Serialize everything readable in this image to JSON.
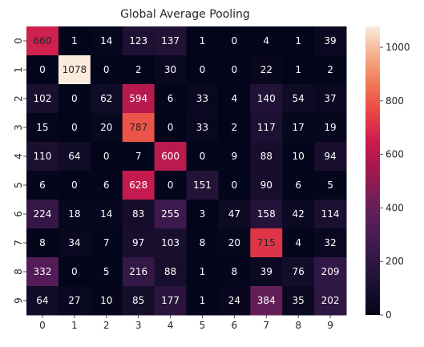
{
  "chart_data": {
    "type": "heatmap",
    "title": "Global Average Pooling",
    "xlabel": "",
    "ylabel": "",
    "x_ticks": [
      "0",
      "1",
      "2",
      "3",
      "4",
      "5",
      "6",
      "7",
      "8",
      "9"
    ],
    "y_ticks": [
      "0",
      "1",
      "2",
      "3",
      "4",
      "5",
      "6",
      "7",
      "8",
      "9"
    ],
    "values": [
      [
        660,
        1,
        14,
        123,
        137,
        1,
        0,
        4,
        1,
        39
      ],
      [
        0,
        1078,
        0,
        2,
        30,
        0,
        0,
        22,
        1,
        2
      ],
      [
        102,
        0,
        62,
        594,
        6,
        33,
        4,
        140,
        54,
        37
      ],
      [
        15,
        0,
        20,
        787,
        0,
        33,
        2,
        117,
        17,
        19
      ],
      [
        110,
        64,
        0,
        7,
        600,
        0,
        9,
        88,
        10,
        94
      ],
      [
        6,
        0,
        6,
        628,
        0,
        151,
        0,
        90,
        6,
        5
      ],
      [
        224,
        18,
        14,
        83,
        255,
        3,
        47,
        158,
        42,
        114
      ],
      [
        8,
        34,
        7,
        97,
        103,
        8,
        20,
        715,
        4,
        32
      ],
      [
        332,
        0,
        5,
        216,
        88,
        1,
        8,
        39,
        76,
        209
      ],
      [
        64,
        27,
        10,
        85,
        177,
        1,
        24,
        384,
        35,
        202
      ]
    ],
    "vmin": 0,
    "vmax": 1078,
    "colorbar_ticks": [
      0,
      200,
      400,
      600,
      800,
      1000
    ],
    "colormap": "rocket",
    "grid": false,
    "legend": "colorbar-right"
  }
}
